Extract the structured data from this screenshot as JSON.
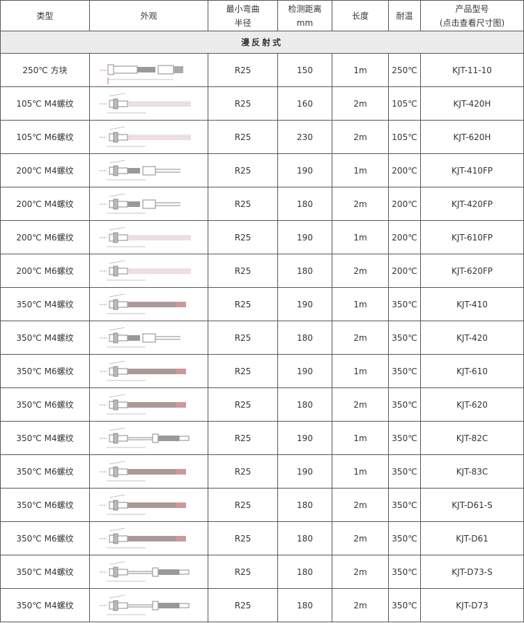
{
  "header": {
    "type": "类型",
    "appearance": "外观",
    "bend_radius": [
      "最小弯曲",
      "半径"
    ],
    "distance": [
      "检测距离",
      "mm"
    ],
    "length": "长度",
    "temp": "耐温",
    "model": [
      "产品型号",
      "(点击查看尺寸图)"
    ]
  },
  "section": "漫反射式",
  "rows": [
    {
      "type": "250℃ 方块",
      "radius": "R25",
      "distance": "150",
      "length": "1m",
      "temp": "250℃",
      "model": "KJT-11-10",
      "drawing": "block"
    },
    {
      "type": "105℃ M4螺纹",
      "radius": "R25",
      "distance": "160",
      "length": "2m",
      "temp": "105℃",
      "model": "KJT-420H",
      "drawing": "plain"
    },
    {
      "type": "105℃ M6螺纹",
      "radius": "R25",
      "distance": "230",
      "length": "2m",
      "temp": "105℃",
      "model": "KJT-620H",
      "drawing": "plain"
    },
    {
      "type": "200℃ M4螺纹",
      "radius": "R25",
      "distance": "190",
      "length": "1m",
      "temp": "200℃",
      "model": "KJT-410FP",
      "drawing": "sleeve"
    },
    {
      "type": "200℃ M4螺纹",
      "radius": "R25",
      "distance": "180",
      "length": "2m",
      "temp": "200℃",
      "model": "KJT-420FP",
      "drawing": "sleeve"
    },
    {
      "type": "200℃ M6螺纹",
      "radius": "R25",
      "distance": "190",
      "length": "1m",
      "temp": "200℃",
      "model": "KJT-610FP",
      "drawing": "plain"
    },
    {
      "type": "200℃ M6螺纹",
      "radius": "R25",
      "distance": "180",
      "length": "2m",
      "temp": "200℃",
      "model": "KJT-620FP",
      "drawing": "plain"
    },
    {
      "type": "350℃ M4螺纹",
      "radius": "R25",
      "distance": "190",
      "length": "1m",
      "temp": "350℃",
      "model": "KJT-410",
      "drawing": "armor"
    },
    {
      "type": "350℃ M4螺纹",
      "radius": "R25",
      "distance": "180",
      "length": "2m",
      "temp": "350℃",
      "model": "KJT-420",
      "drawing": "sleeve"
    },
    {
      "type": "350℃ M6螺纹",
      "radius": "R25",
      "distance": "190",
      "length": "1m",
      "temp": "350℃",
      "model": "KJT-610",
      "drawing": "armor"
    },
    {
      "type": "350℃ M6螺纹",
      "radius": "R25",
      "distance": "180",
      "length": "2m",
      "temp": "350℃",
      "model": "KJT-620",
      "drawing": "armor"
    },
    {
      "type": "350℃ M4螺纹",
      "radius": "R25",
      "distance": "190",
      "length": "1m",
      "temp": "350℃",
      "model": "KJT-82C",
      "drawing": "long"
    },
    {
      "type": "350℃ M6螺纹",
      "radius": "R25",
      "distance": "190",
      "length": "1m",
      "temp": "350℃",
      "model": "KJT-83C",
      "drawing": "armor"
    },
    {
      "type": "350℃ M6螺纹",
      "radius": "R25",
      "distance": "180",
      "length": "2m",
      "temp": "350℃",
      "model": "KJT-D61-S",
      "drawing": "armor"
    },
    {
      "type": "350℃ M6螺纹",
      "radius": "R25",
      "distance": "180",
      "length": "2m",
      "temp": "350℃",
      "model": "KJT-D61",
      "drawing": "armor"
    },
    {
      "type": "350℃ M4螺纹",
      "radius": "R25",
      "distance": "180",
      "length": "2m",
      "temp": "350℃",
      "model": "KJT-D73-S",
      "drawing": "long"
    },
    {
      "type": "350℃ M4螺纹",
      "radius": "R25",
      "distance": "180",
      "length": "2m",
      "temp": "350℃",
      "model": "KJT-D73",
      "drawing": "long"
    }
  ]
}
